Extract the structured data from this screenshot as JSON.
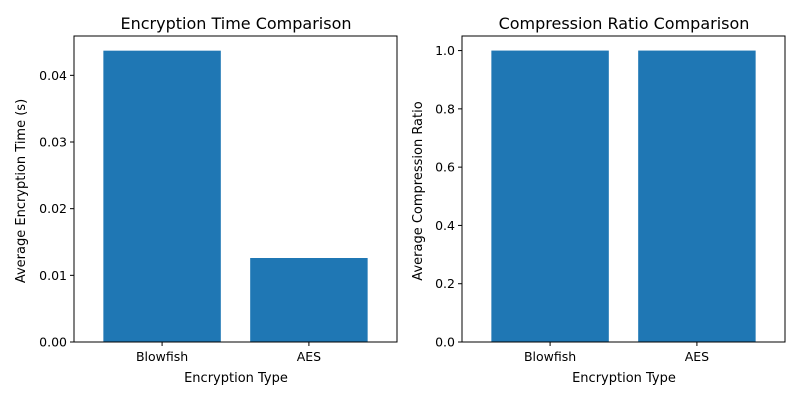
{
  "chart_data": [
    {
      "type": "bar",
      "title": "Encryption Time Comparison",
      "xlabel": "Encryption Type",
      "ylabel": "Average Encryption Time (s)",
      "categories": [
        "Blowfish",
        "AES"
      ],
      "values": [
        0.0437,
        0.0126
      ],
      "ylim": [
        0,
        0.0459
      ],
      "yticks": [
        0,
        0.01,
        0.02,
        0.03,
        0.04
      ],
      "ytick_labels": [
        "0.00",
        "0.01",
        "0.02",
        "0.03",
        "0.04"
      ],
      "bar_color": "#1f77b4",
      "grid": false
    },
    {
      "type": "bar",
      "title": "Compression Ratio Comparison",
      "xlabel": "Encryption Type",
      "ylabel": "Average Compression Ratio",
      "categories": [
        "Blowfish",
        "AES"
      ],
      "values": [
        1.0,
        1.0
      ],
      "ylim": [
        0,
        1.05
      ],
      "yticks": [
        0,
        0.2,
        0.4,
        0.6,
        0.8,
        1.0
      ],
      "ytick_labels": [
        "0.0",
        "0.2",
        "0.4",
        "0.6",
        "0.8",
        "1.0"
      ],
      "bar_color": "#1f77b4",
      "grid": false
    }
  ]
}
